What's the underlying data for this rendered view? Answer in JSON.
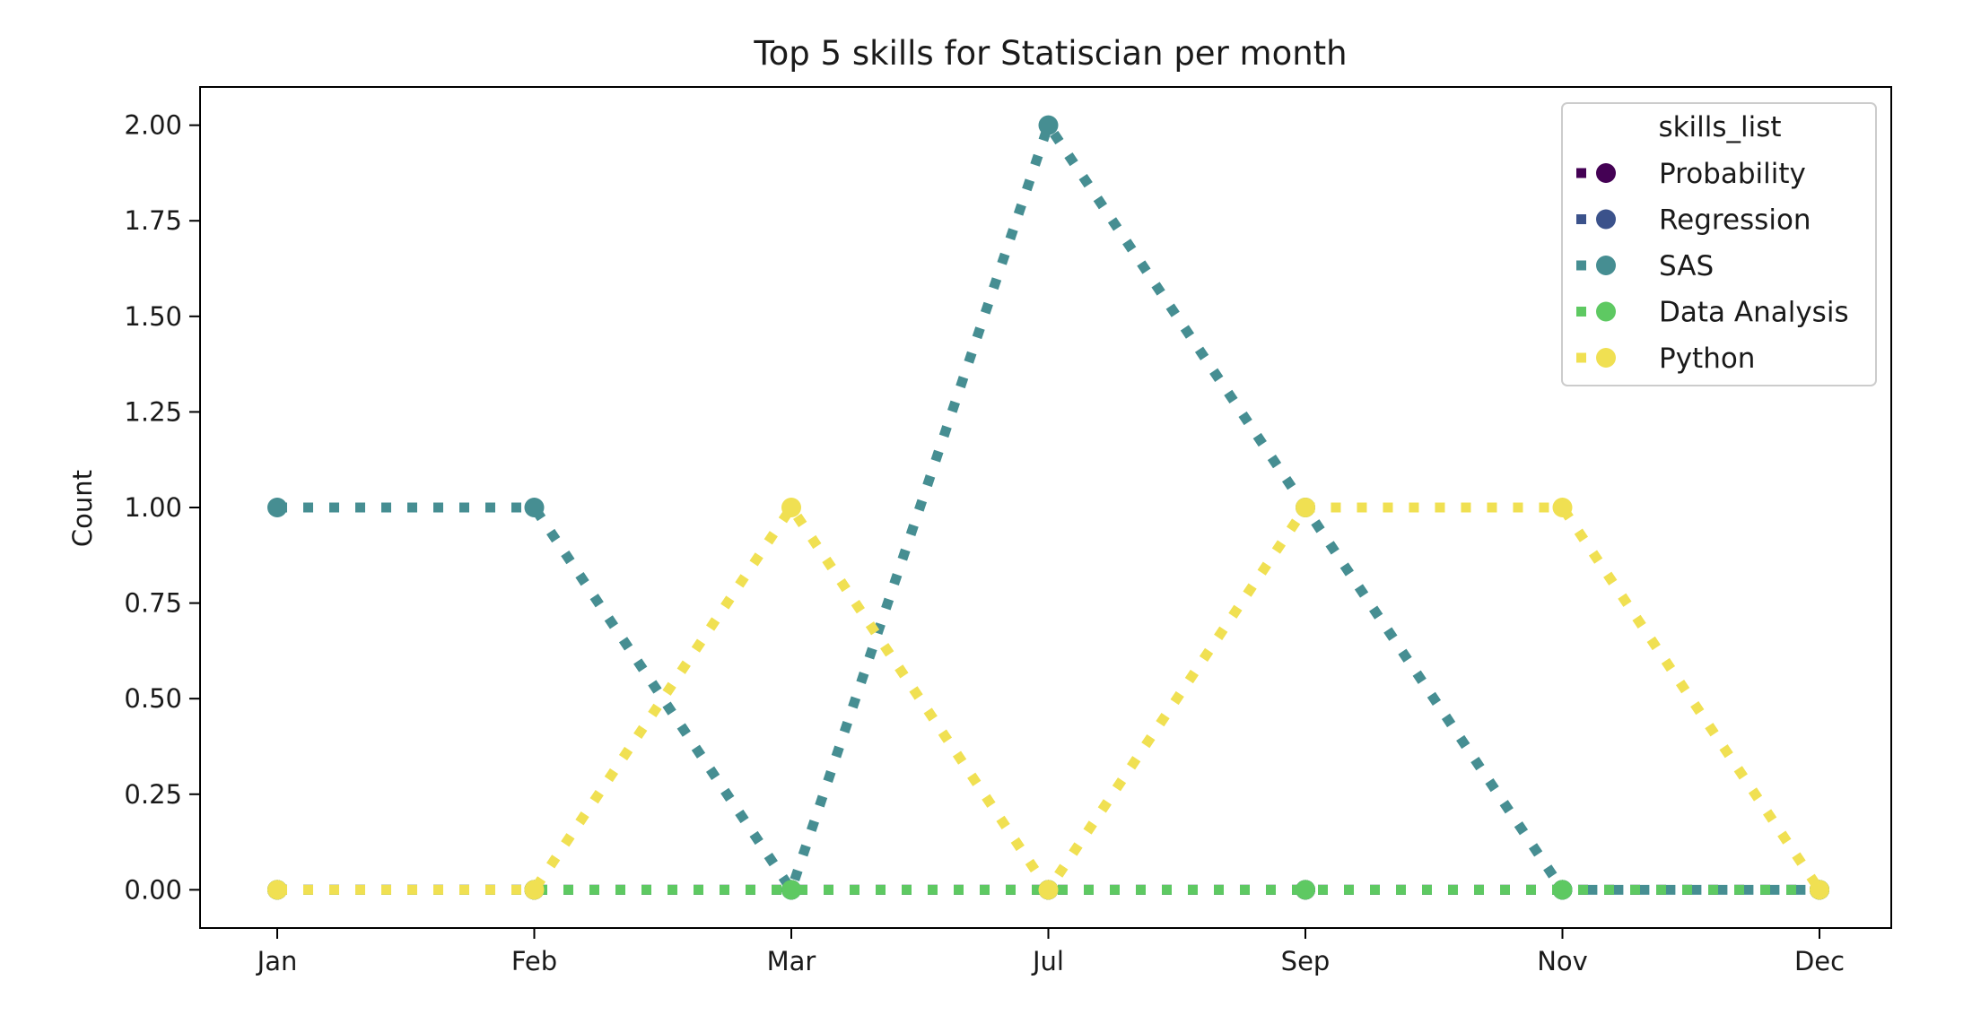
{
  "chart_data": {
    "type": "line",
    "title": "Top 5 skills for Statiscian per month",
    "xlabel": "",
    "ylabel": "Count",
    "categories": [
      "Jan",
      "Feb",
      "Mar",
      "Jul",
      "Sep",
      "Nov",
      "Dec"
    ],
    "ylim": [
      -0.1,
      2.1
    ],
    "yticks": [
      "0.00",
      "0.25",
      "0.50",
      "0.75",
      "1.00",
      "1.25",
      "1.50",
      "1.75",
      "2.00"
    ],
    "grid": false,
    "legend": {
      "title": "skills_list",
      "placement": "top-right"
    },
    "series": [
      {
        "name": "Probability",
        "color": "#440154",
        "values": [
          0,
          0,
          0,
          0,
          0,
          0,
          0
        ]
      },
      {
        "name": "Regression",
        "color": "#3b528b",
        "values": [
          0,
          0,
          0,
          0,
          0,
          0,
          0
        ]
      },
      {
        "name": "SAS",
        "color": "#468e92",
        "values": [
          1,
          1,
          0,
          2,
          1,
          0,
          0
        ]
      },
      {
        "name": "Data Analysis",
        "color": "#5ec962",
        "values": [
          0,
          0,
          0,
          0,
          0,
          0,
          0
        ]
      },
      {
        "name": "Python",
        "color": "#f0e052",
        "values": [
          0,
          0,
          1,
          0,
          1,
          1,
          0
        ]
      }
    ]
  }
}
